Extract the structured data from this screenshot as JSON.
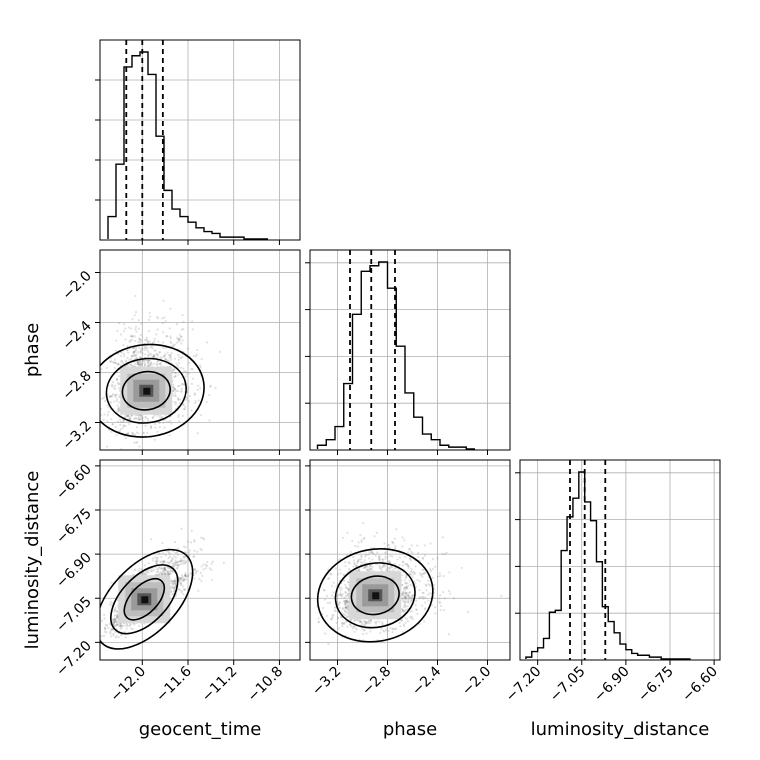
{
  "chart_data": {
    "type": "corner",
    "grid": true,
    "parameters": [
      {
        "name": "geocent_time",
        "xlabel": "geocent_time",
        "ticks": [
          -12.0,
          -11.6,
          -11.2,
          -10.8
        ],
        "tick_labels": [
          "−12.0",
          "−11.6",
          "−11.2",
          "−10.8"
        ],
        "range": [
          -12.37,
          -10.62
        ],
        "quantiles": [
          -12.14,
          -12.0,
          -11.82
        ],
        "hist_edges": [
          -12.3,
          -12.23,
          -12.16,
          -12.09,
          -12.02,
          -11.95,
          -11.88,
          -11.81,
          -11.74,
          -11.67,
          -11.6,
          -11.53,
          -11.46,
          -11.39,
          -11.32,
          -11.25,
          -11.18,
          -11.11,
          -11.04,
          -10.97,
          -10.9
        ],
        "hist_counts": [
          0.12,
          0.4,
          0.92,
          0.98,
          1.0,
          0.88,
          0.55,
          0.26,
          0.16,
          0.12,
          0.09,
          0.06,
          0.04,
          0.03,
          0.01,
          0.01,
          0.01,
          0.0,
          0.0,
          0.0
        ]
      },
      {
        "name": "phase",
        "xlabel": "phase",
        "ylabel": "phase",
        "ticks": [
          -3.2,
          -2.8,
          -2.4,
          -2.0
        ],
        "tick_labels": [
          "−3.2",
          "−2.8",
          "−2.4",
          "−2.0"
        ],
        "range": [
          -3.42,
          -1.82
        ],
        "quantiles": [
          -3.1,
          -2.93,
          -2.74
        ],
        "hist_edges": [
          -3.36,
          -3.29,
          -3.22,
          -3.15,
          -3.08,
          -3.01,
          -2.94,
          -2.87,
          -2.8,
          -2.73,
          -2.66,
          -2.59,
          -2.52,
          -2.45,
          -2.38,
          -2.31,
          -2.24,
          -2.17,
          -2.1
        ],
        "hist_counts": [
          0.02,
          0.05,
          0.12,
          0.35,
          0.72,
          0.95,
          0.98,
          1.0,
          0.86,
          0.55,
          0.3,
          0.17,
          0.08,
          0.05,
          0.02,
          0.01,
          0.01,
          0.0
        ]
      },
      {
        "name": "luminosity_distance",
        "xlabel": "luminosity_distance",
        "ylabel": "luminosity_distance",
        "ticks": [
          -7.2,
          -7.05,
          -6.9,
          -6.75,
          -6.6
        ],
        "tick_labels": [
          "−7.20",
          "−7.05",
          "−6.90",
          "−6.75",
          "−6.60"
        ],
        "range": [
          -7.26,
          -6.58
        ],
        "quantiles": [
          -7.09,
          -7.04,
          -6.97
        ],
        "hist_edges": [
          -7.24,
          -7.22,
          -7.2,
          -7.18,
          -7.16,
          -7.14,
          -7.12,
          -7.1,
          -7.08,
          -7.06,
          -7.04,
          -7.02,
          -7.0,
          -6.98,
          -6.96,
          -6.94,
          -6.92,
          -6.9,
          -6.88,
          -6.86,
          -6.84,
          -6.82,
          -6.8,
          -6.78,
          -6.76,
          -6.74,
          -6.72,
          -6.7,
          -6.68
        ],
        "hist_counts": [
          0.01,
          0.04,
          0.06,
          0.11,
          0.25,
          0.26,
          0.58,
          0.76,
          0.86,
          1.0,
          0.84,
          0.74,
          0.52,
          0.28,
          0.2,
          0.14,
          0.08,
          0.05,
          0.03,
          0.02,
          0.02,
          0.01,
          0.01,
          0.0,
          0.0,
          0.0,
          0.0,
          0.0
        ]
      }
    ],
    "correlations": {
      "phase_vs_geocent_time": 0.15,
      "luminosity_distance_vs_geocent_time": 0.8,
      "luminosity_distance_vs_phase": 0.2
    }
  }
}
